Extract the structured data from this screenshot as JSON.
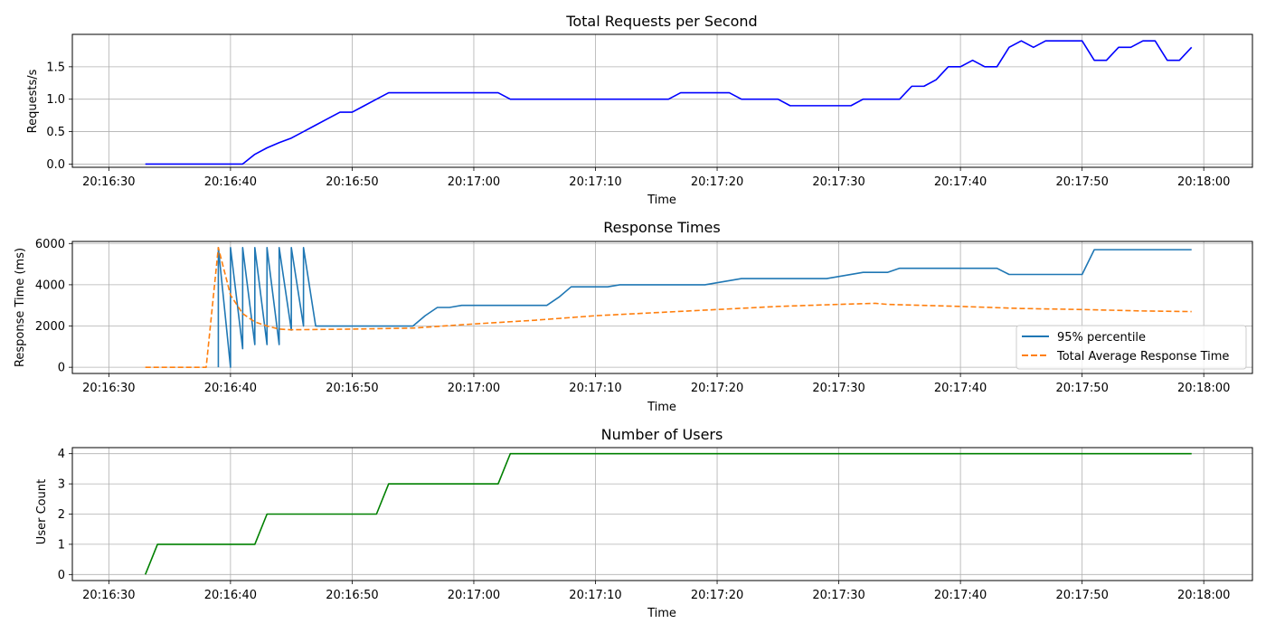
{
  "colors": {
    "requests": "#0000ff",
    "p95": "#1f77b4",
    "avg": "#ff7f0e",
    "users": "#008000",
    "grid": "#b0b0b0"
  },
  "chart_data": [
    {
      "type": "line",
      "title": "Total Requests per Second",
      "xlabel": "Time",
      "ylabel": "Requests/s",
      "grid": true,
      "x_tick_labels": [
        "20:16:30",
        "20:16:40",
        "20:16:50",
        "20:17:00",
        "20:17:10",
        "20:17:20",
        "20:17:30",
        "20:17:40",
        "20:17:50",
        "20:18:00"
      ],
      "xlim": [
        "20:16:27",
        "20:18:04"
      ],
      "ylim": [
        -0.05,
        2.0
      ],
      "y_ticks": [
        0.0,
        0.5,
        1.0,
        1.5
      ],
      "y_tick_labels": [
        "0.0",
        "0.5",
        "1.0",
        "1.5"
      ],
      "series": [
        {
          "color": "#0000ff",
          "dash": "solid",
          "points": [
            [
              "20:16:33",
              0
            ],
            [
              "20:16:41",
              0
            ],
            [
              "20:16:42",
              0.15
            ],
            [
              "20:16:43",
              0.25
            ],
            [
              "20:16:44",
              0.33
            ],
            [
              "20:16:45",
              0.4
            ],
            [
              "20:16:46",
              0.5
            ],
            [
              "20:16:47",
              0.6
            ],
            [
              "20:16:48",
              0.7
            ],
            [
              "20:16:49",
              0.8
            ],
            [
              "20:16:50",
              0.8
            ],
            [
              "20:16:51",
              0.9
            ],
            [
              "20:16:52",
              1.0
            ],
            [
              "20:16:53",
              1.1
            ],
            [
              "20:17:02",
              1.1
            ],
            [
              "20:17:03",
              1.0
            ],
            [
              "20:17:16",
              1.0
            ],
            [
              "20:17:17",
              1.1
            ],
            [
              "20:17:21",
              1.1
            ],
            [
              "20:17:22",
              1.0
            ],
            [
              "20:17:25",
              1.0
            ],
            [
              "20:17:26",
              0.9
            ],
            [
              "20:17:31",
              0.9
            ],
            [
              "20:17:32",
              1.0
            ],
            [
              "20:17:35",
              1.0
            ],
            [
              "20:17:36",
              1.2
            ],
            [
              "20:17:37",
              1.2
            ],
            [
              "20:17:38",
              1.3
            ],
            [
              "20:17:39",
              1.5
            ],
            [
              "20:17:40",
              1.5
            ],
            [
              "20:17:41",
              1.6
            ],
            [
              "20:17:42",
              1.5
            ],
            [
              "20:17:43",
              1.5
            ],
            [
              "20:17:44",
              1.8
            ],
            [
              "20:17:45",
              1.9
            ],
            [
              "20:17:46",
              1.8
            ],
            [
              "20:17:47",
              1.9
            ],
            [
              "20:17:50",
              1.9
            ],
            [
              "20:17:51",
              1.6
            ],
            [
              "20:17:52",
              1.6
            ],
            [
              "20:17:53",
              1.8
            ],
            [
              "20:17:54",
              1.8
            ],
            [
              "20:17:55",
              1.9
            ],
            [
              "20:17:56",
              1.9
            ],
            [
              "20:17:57",
              1.6
            ],
            [
              "20:17:58",
              1.6
            ],
            [
              "20:17:59",
              1.8
            ]
          ]
        }
      ]
    },
    {
      "type": "line",
      "title": "Response Times",
      "xlabel": "Time",
      "ylabel": "Response Time (ms)",
      "grid": true,
      "legend": "lower-right",
      "x_tick_labels": [
        "20:16:30",
        "20:16:40",
        "20:16:50",
        "20:17:00",
        "20:17:10",
        "20:17:20",
        "20:17:30",
        "20:17:40",
        "20:17:50",
        "20:18:00"
      ],
      "xlim": [
        "20:16:27",
        "20:18:04"
      ],
      "ylim": [
        -300,
        6100
      ],
      "y_ticks": [
        0,
        2000,
        4000,
        6000
      ],
      "y_tick_labels": [
        "0",
        "2000",
        "4000",
        "6000"
      ],
      "series": [
        {
          "name": "95% percentile",
          "color": "#1f77b4",
          "dash": "solid",
          "points": [
            [
              "20:16:39",
              0
            ],
            [
              "20:16:39",
              5800
            ],
            [
              "20:16:40",
              0
            ],
            [
              "20:16:40",
              5800
            ],
            [
              "20:16:41",
              900
            ],
            [
              "20:16:41",
              5800
            ],
            [
              "20:16:42",
              1100
            ],
            [
              "20:16:42",
              5800
            ],
            [
              "20:16:43",
              1100
            ],
            [
              "20:16:43",
              5800
            ],
            [
              "20:16:44",
              1100
            ],
            [
              "20:16:44",
              5800
            ],
            [
              "20:16:45",
              1800
            ],
            [
              "20:16:45",
              5800
            ],
            [
              "20:16:46",
              2000
            ],
            [
              "20:16:46",
              5800
            ],
            [
              "20:16:47",
              2000
            ],
            [
              "20:16:55",
              2000
            ],
            [
              "20:16:56",
              2500
            ],
            [
              "20:16:57",
              2900
            ],
            [
              "20:16:58",
              2900
            ],
            [
              "20:16:59",
              3000
            ],
            [
              "20:17:06",
              3000
            ],
            [
              "20:17:07",
              3400
            ],
            [
              "20:17:08",
              3900
            ],
            [
              "20:17:11",
              3900
            ],
            [
              "20:17:12",
              4000
            ],
            [
              "20:17:19",
              4000
            ],
            [
              "20:17:22",
              4300
            ],
            [
              "20:17:29",
              4300
            ],
            [
              "20:17:32",
              4600
            ],
            [
              "20:17:34",
              4600
            ],
            [
              "20:17:35",
              4800
            ],
            [
              "20:17:43",
              4800
            ],
            [
              "20:17:44",
              4500
            ],
            [
              "20:17:50",
              4500
            ],
            [
              "20:17:51",
              5700
            ],
            [
              "20:17:59",
              5700
            ]
          ]
        },
        {
          "name": "Total Average Response Time",
          "color": "#ff7f0e",
          "dash": "dashed",
          "points": [
            [
              "20:16:33",
              0
            ],
            [
              "20:16:38",
              0
            ],
            [
              "20:16:39",
              5800
            ],
            [
              "20:16:40",
              3500
            ],
            [
              "20:16:41",
              2600
            ],
            [
              "20:16:42",
              2200
            ],
            [
              "20:16:43",
              2000
            ],
            [
              "20:16:44",
              1850
            ],
            [
              "20:16:45",
              1820
            ],
            [
              "20:16:50",
              1850
            ],
            [
              "20:16:55",
              1900
            ],
            [
              "20:17:00",
              2100
            ],
            [
              "20:17:05",
              2280
            ],
            [
              "20:17:10",
              2500
            ],
            [
              "20:17:15",
              2650
            ],
            [
              "20:17:20",
              2800
            ],
            [
              "20:17:25",
              2950
            ],
            [
              "20:17:30",
              3050
            ],
            [
              "20:17:33",
              3100
            ],
            [
              "20:17:34",
              3050
            ],
            [
              "20:17:40",
              2950
            ],
            [
              "20:17:45",
              2850
            ],
            [
              "20:17:50",
              2800
            ],
            [
              "20:17:55",
              2730
            ],
            [
              "20:17:59",
              2700
            ]
          ]
        }
      ]
    },
    {
      "type": "line",
      "title": "Number of Users",
      "xlabel": "Time",
      "ylabel": "User Count",
      "grid": true,
      "x_tick_labels": [
        "20:16:30",
        "20:16:40",
        "20:16:50",
        "20:17:00",
        "20:17:10",
        "20:17:20",
        "20:17:30",
        "20:17:40",
        "20:17:50",
        "20:18:00"
      ],
      "xlim": [
        "20:16:27",
        "20:18:04"
      ],
      "ylim": [
        -0.2,
        4.2
      ],
      "y_ticks": [
        0,
        1,
        2,
        3,
        4
      ],
      "y_tick_labels": [
        "0",
        "1",
        "2",
        "3",
        "4"
      ],
      "series": [
        {
          "color": "#008000",
          "dash": "solid",
          "points": [
            [
              "20:16:33",
              0
            ],
            [
              "20:16:34",
              1
            ],
            [
              "20:16:42",
              1
            ],
            [
              "20:16:43",
              2
            ],
            [
              "20:16:52",
              2
            ],
            [
              "20:16:53",
              3
            ],
            [
              "20:17:02",
              3
            ],
            [
              "20:17:03",
              4
            ],
            [
              "20:17:59",
              4
            ]
          ]
        }
      ]
    }
  ]
}
